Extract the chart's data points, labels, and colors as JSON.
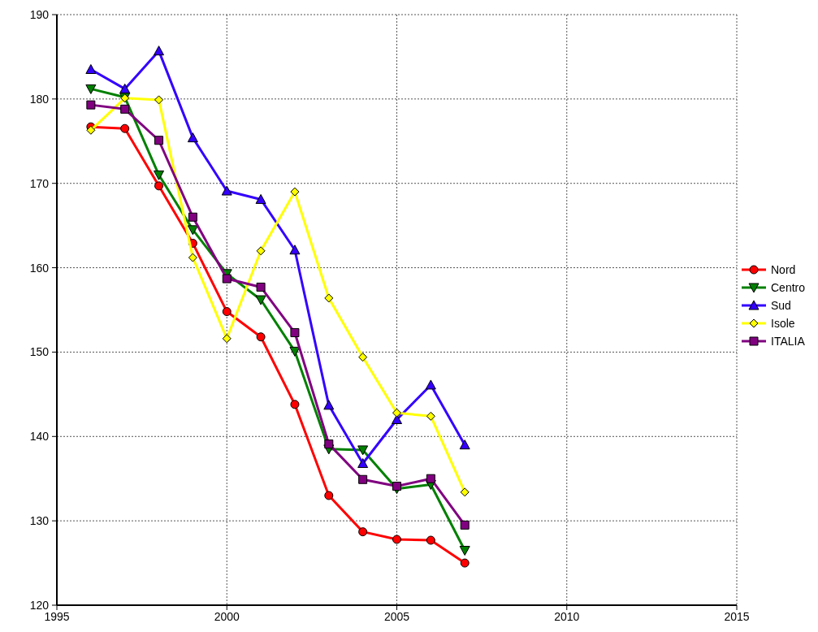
{
  "chart_data": {
    "type": "line",
    "x": [
      1996,
      1997,
      1998,
      1999,
      2000,
      2001,
      2002,
      2003,
      2004,
      2005,
      2006,
      2007
    ],
    "series": [
      {
        "name": "Nord",
        "color": "#ff0000",
        "marker": "circle",
        "values": [
          176.7,
          176.5,
          169.7,
          162.9,
          154.8,
          151.8,
          143.8,
          133.0,
          128.7,
          127.8,
          127.7,
          125.0
        ]
      },
      {
        "name": "Centro",
        "color": "#008000",
        "marker": "triangle-down",
        "values": [
          181.2,
          180.2,
          171.0,
          164.5,
          159.3,
          156.2,
          150.1,
          138.5,
          138.4,
          133.8,
          134.3,
          126.5
        ]
      },
      {
        "name": "Sud",
        "color": "#3300ff",
        "marker": "triangle",
        "values": [
          183.5,
          181.2,
          185.7,
          175.4,
          169.1,
          168.1,
          162.1,
          143.7,
          136.8,
          142.0,
          146.1,
          139.0
        ]
      },
      {
        "name": "Isole",
        "color": "#ffff00",
        "marker": "diamond",
        "values": [
          176.3,
          180.1,
          179.9,
          161.2,
          151.6,
          162.0,
          169.0,
          156.4,
          149.4,
          142.8,
          142.4,
          133.4
        ]
      },
      {
        "name": "ITALIA",
        "color": "#800080",
        "marker": "square",
        "values": [
          179.3,
          178.8,
          175.1,
          166.0,
          158.7,
          157.7,
          152.3,
          139.1,
          134.9,
          134.1,
          135.0,
          129.5
        ]
      }
    ],
    "xlim": [
      1995,
      2015
    ],
    "xticks": [
      1995,
      2000,
      2005,
      2010,
      2015
    ],
    "ylim": [
      120,
      190
    ],
    "yticks": [
      120,
      130,
      140,
      150,
      160,
      170,
      180,
      190
    ],
    "grid": true,
    "legend": "right",
    "line_style": "solid"
  }
}
